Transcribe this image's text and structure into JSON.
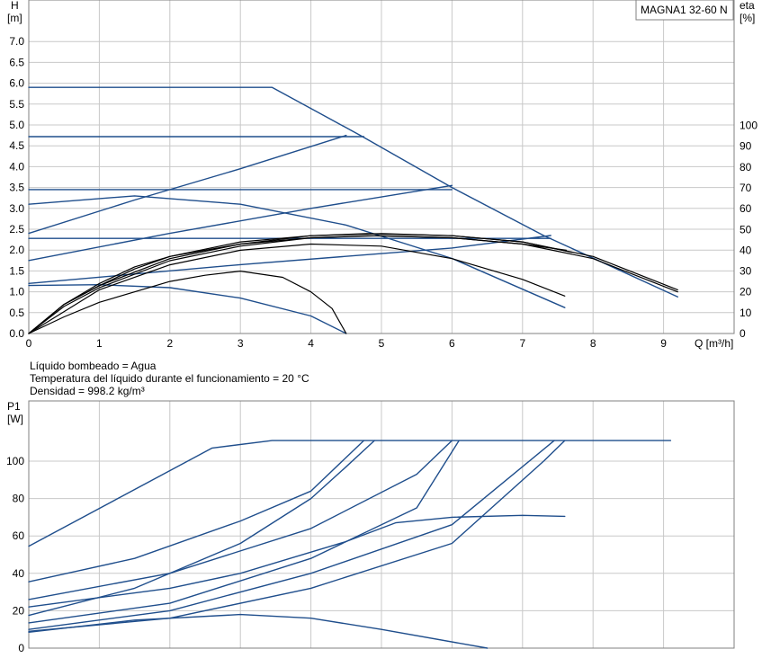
{
  "chart_data": [
    {
      "type": "line",
      "title": "MAGNA1 32-60 N",
      "xlabel": "Q [m³/h]",
      "ylabel_line1": "H",
      "ylabel_line2": "[m]",
      "y2label_line1": "eta",
      "y2label_line2": "[%]",
      "xlim": [
        0,
        10
      ],
      "ylim": [
        0,
        8
      ],
      "y2lim": [
        0,
        100
      ],
      "xticks": [
        0,
        1,
        2,
        3,
        4,
        5,
        6,
        7,
        8,
        9
      ],
      "yticks": [
        "0.0",
        "0.5",
        "1.0",
        "1.5",
        "2.0",
        "2.5",
        "3.0",
        "3.5",
        "4.0",
        "4.5",
        "5.0",
        "5.5",
        "6.0",
        "6.5",
        "7.0"
      ],
      "y2ticks": [
        0,
        10,
        20,
        30,
        40,
        50,
        60,
        70,
        80,
        90,
        100
      ],
      "grid": true,
      "head_series": [
        {
          "points": [
            [
              0,
              5.9
            ],
            [
              3.45,
              5.9
            ],
            [
              4.7,
              4.75
            ],
            [
              6.0,
              3.5
            ],
            [
              7.3,
              2.35
            ],
            [
              9.2,
              0.88
            ]
          ],
          "color": "#1f4e8c"
        },
        {
          "points": [
            [
              0,
              4.72
            ],
            [
              4.75,
              4.72
            ]
          ],
          "color": "#1f4e8c"
        },
        {
          "points": [
            [
              0,
              3.45
            ],
            [
              6.0,
              3.45
            ]
          ],
          "color": "#1f4e8c"
        },
        {
          "points": [
            [
              0,
              2.28
            ],
            [
              7.4,
              2.28
            ]
          ],
          "color": "#1f4e8c"
        },
        {
          "points": [
            [
              0,
              2.4
            ],
            [
              1.5,
              3.2
            ],
            [
              3.0,
              3.95
            ],
            [
              4.5,
              4.75
            ]
          ],
          "color": "#1f4e8c"
        },
        {
          "points": [
            [
              0,
              1.75
            ],
            [
              2.0,
              2.4
            ],
            [
              4.0,
              3.0
            ],
            [
              6.0,
              3.55
            ]
          ],
          "color": "#1f4e8c"
        },
        {
          "points": [
            [
              0,
              1.2
            ],
            [
              3.0,
              1.65
            ],
            [
              6.0,
              2.05
            ],
            [
              7.4,
              2.35
            ]
          ],
          "color": "#1f4e8c"
        },
        {
          "points": [
            [
              0,
              3.1
            ],
            [
              1.5,
              3.3
            ],
            [
              3.0,
              3.1
            ],
            [
              4.5,
              2.6
            ],
            [
              6.0,
              1.8
            ],
            [
              7.6,
              0.62
            ]
          ],
          "color": "#1f4e8c"
        },
        {
          "points": [
            [
              0,
              1.15
            ],
            [
              1.0,
              1.17
            ],
            [
              2.0,
              1.1
            ],
            [
              3.0,
              0.85
            ],
            [
              4.0,
              0.42
            ],
            [
              4.5,
              0.0
            ]
          ],
          "color": "#1f4e8c"
        }
      ],
      "eta_series": [
        {
          "points": [
            [
              0,
              0
            ],
            [
              0.5,
              14
            ],
            [
              1,
              24
            ],
            [
              1.5,
              32
            ],
            [
              2,
              37
            ],
            [
              3,
              44
            ],
            [
              4,
              47
            ],
            [
              4.8,
              48
            ],
            [
              6,
              47
            ],
            [
              7,
              44
            ],
            [
              8,
              37
            ],
            [
              9.2,
              21
            ]
          ],
          "color": "#000000"
        },
        {
          "points": [
            [
              0,
              0
            ],
            [
              0.5,
              14
            ],
            [
              1,
              23
            ],
            [
              1.5,
              31
            ],
            [
              2,
              37
            ],
            [
              3,
              43
            ],
            [
              4,
              46
            ],
            [
              4.8,
              47
            ],
            [
              6,
              46
            ],
            [
              7,
              43
            ],
            [
              8,
              36
            ],
            [
              9.2,
              20
            ]
          ],
          "color": "#000000"
        },
        {
          "points": [
            [
              0,
              0
            ],
            [
              0.5,
              14
            ],
            [
              1,
              23
            ],
            [
              2,
              36
            ],
            [
              3,
              43
            ],
            [
              4,
              47
            ],
            [
              5,
              48
            ],
            [
              6,
              47
            ],
            [
              7,
              44
            ],
            [
              7.7,
              39
            ]
          ],
          "color": "#000000"
        },
        {
          "points": [
            [
              0,
              0
            ],
            [
              0.5,
              13
            ],
            [
              1,
              22
            ],
            [
              2,
              35
            ],
            [
              3,
              42
            ],
            [
              4,
              46
            ],
            [
              5,
              47
            ],
            [
              6,
              46
            ],
            [
              7,
              43
            ],
            [
              7.62,
              40
            ]
          ],
          "color": "#000000"
        },
        {
          "points": [
            [
              0,
              0
            ],
            [
              1,
              21
            ],
            [
              2,
              33
            ],
            [
              3,
              40
            ],
            [
              4,
              43
            ],
            [
              5,
              42
            ],
            [
              6,
              36
            ],
            [
              7,
              26
            ],
            [
              7.6,
              18
            ]
          ],
          "color": "#000000"
        },
        {
          "points": [
            [
              0,
              0
            ],
            [
              0.5,
              8
            ],
            [
              1,
              15
            ],
            [
              2,
              25
            ],
            [
              2.5,
              28
            ],
            [
              3,
              30
            ],
            [
              3.6,
              27
            ],
            [
              4,
              20
            ],
            [
              4.3,
              12
            ],
            [
              4.5,
              0
            ]
          ],
          "color": "#000000"
        }
      ]
    },
    {
      "type": "line",
      "xlabel": "",
      "ylabel_line1": "P1",
      "ylabel_line2": "[W]",
      "xlim": [
        0,
        10
      ],
      "ylim": [
        0,
        120
      ],
      "xticks": [
        0,
        1,
        2,
        3,
        4,
        5,
        6,
        7,
        8,
        9
      ],
      "yticks": [
        0,
        20,
        40,
        60,
        80,
        100
      ],
      "grid": true,
      "series": [
        {
          "points": [
            [
              0,
              54.5
            ],
            [
              2.6,
              107
            ],
            [
              3.45,
              111
            ],
            [
              9.1,
              111
            ]
          ],
          "color": "#1f4e8c"
        },
        {
          "points": [
            [
              0,
              35.5
            ],
            [
              1.5,
              48
            ],
            [
              3.0,
              68
            ],
            [
              4.0,
              84
            ],
            [
              4.75,
              111
            ]
          ],
          "color": "#1f4e8c"
        },
        {
          "points": [
            [
              0,
              17.5
            ],
            [
              1.5,
              32
            ],
            [
              3.0,
              56
            ],
            [
              4.0,
              80
            ],
            [
              4.5,
              97
            ],
            [
              4.9,
              111
            ]
          ],
          "color": "#1f4e8c"
        },
        {
          "points": [
            [
              0,
              26
            ],
            [
              2.0,
              40
            ],
            [
              4.0,
              64
            ],
            [
              5.5,
              93
            ],
            [
              6.0,
              111
            ]
          ],
          "color": "#1f4e8c"
        },
        {
          "points": [
            [
              0,
              13.5
            ],
            [
              2.0,
              24
            ],
            [
              4.0,
              48
            ],
            [
              5.5,
              75
            ],
            [
              6.1,
              111
            ]
          ],
          "color": "#1f4e8c"
        },
        {
          "points": [
            [
              0,
              10
            ],
            [
              2.0,
              20
            ],
            [
              4.0,
              40
            ],
            [
              6.0,
              66
            ],
            [
              7.45,
              111
            ]
          ],
          "color": "#1f4e8c"
        },
        {
          "points": [
            [
              0,
              9
            ],
            [
              2.0,
              16
            ],
            [
              4.0,
              32
            ],
            [
              6.0,
              56
            ],
            [
              7.3,
              100
            ],
            [
              7.6,
              111
            ]
          ],
          "color": "#1f4e8c"
        },
        {
          "points": [
            [
              0,
              22
            ],
            [
              2.0,
              32
            ],
            [
              3.0,
              40
            ],
            [
              4.5,
              57
            ],
            [
              5.2,
              67
            ],
            [
              6.0,
              70
            ],
            [
              7.0,
              71
            ],
            [
              7.6,
              70.5
            ]
          ],
          "color": "#1f4e8c"
        },
        {
          "points": [
            [
              0,
              8.5
            ],
            [
              1.5,
              15
            ],
            [
              3.0,
              18
            ],
            [
              4.0,
              16
            ],
            [
              5.0,
              10
            ],
            [
              6.5,
              0
            ]
          ],
          "color": "#1f4e8c"
        }
      ]
    }
  ],
  "info_lines": [
    "Líquido bombeado = Agua",
    "Temperatura del líquido durante el funcionamiento = 20 °C",
    "Densidad = 998.2 kg/m³"
  ]
}
